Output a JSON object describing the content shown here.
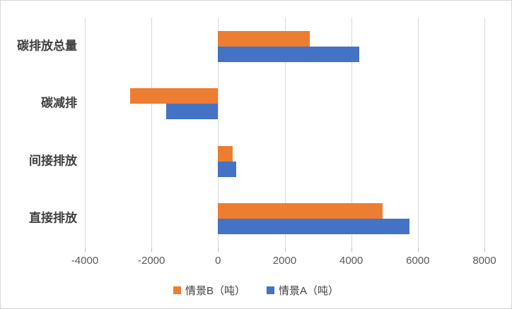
{
  "chart_data": {
    "type": "bar",
    "orientation": "horizontal",
    "title": "",
    "categories": [
      "碳排放总量",
      "碳减排",
      "间接排放",
      "直接排放"
    ],
    "series": [
      {
        "name": "情景B（吨）",
        "color": "#ED7D31",
        "values": [
          2750,
          -2650,
          450,
          4950
        ]
      },
      {
        "name": "情景A（吨）",
        "color": "#4472C4",
        "values": [
          4250,
          -1550,
          550,
          5750
        ]
      }
    ],
    "bar_stack_order_top_to_bottom": [
      "情景B（吨）",
      "情景A（吨）"
    ],
    "xlim": [
      -4000,
      8000
    ],
    "x_ticks": [
      -4000,
      -2000,
      0,
      2000,
      4000,
      6000,
      8000
    ],
    "xlabel": "",
    "ylabel": "",
    "grid": true,
    "legend_position": "bottom"
  },
  "styles": {
    "background": "#FFFFFF",
    "panel_border": "#D9D9D9",
    "gridline_color": "#D9D9D9",
    "tick_color": "#BFBFBF",
    "tick_label_color": "#595959",
    "category_label_color": "#404040",
    "legend_text_color": "#404040"
  }
}
